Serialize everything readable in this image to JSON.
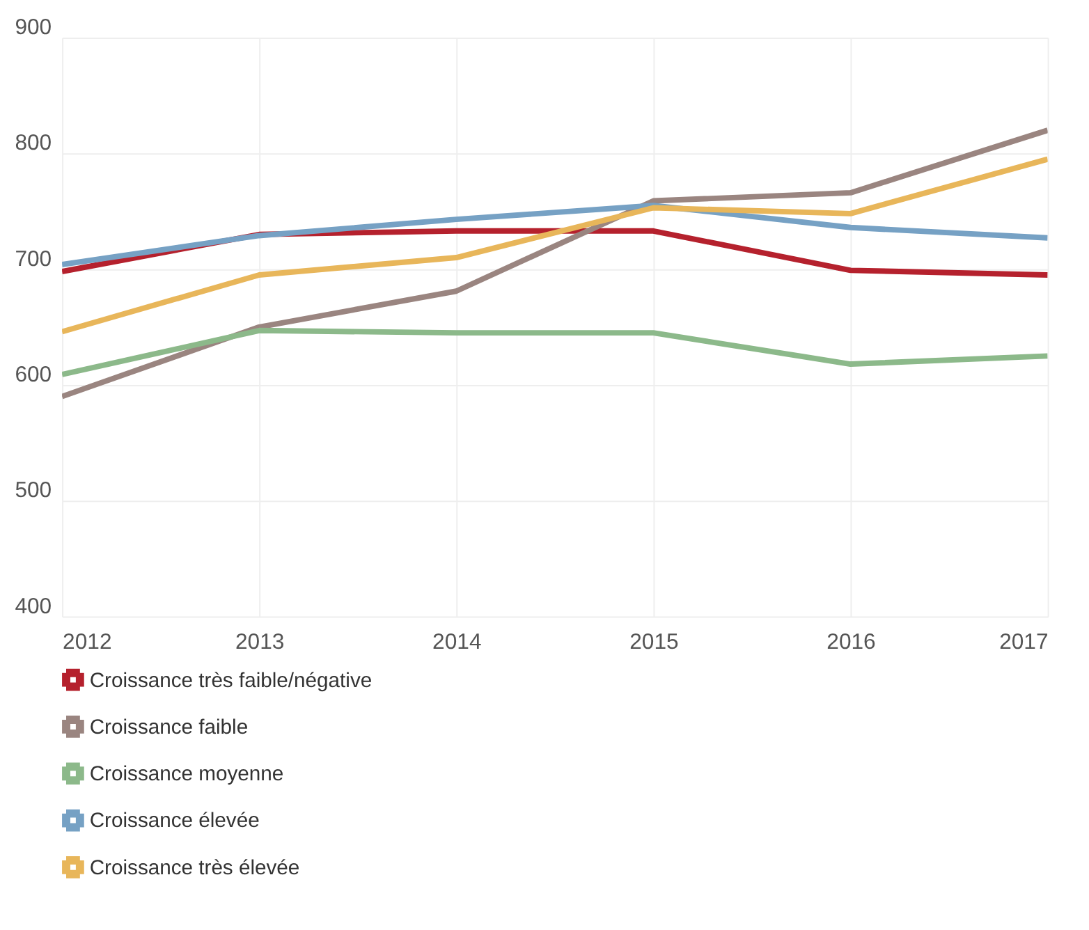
{
  "chart_data": {
    "type": "line",
    "x": [
      2012,
      2013,
      2014,
      2015,
      2016,
      2017
    ],
    "xlim": [
      2012,
      2017
    ],
    "xticks": [
      2012,
      2013,
      2014,
      2015,
      2016,
      2017
    ],
    "ylim": [
      400,
      900
    ],
    "yticks": [
      400,
      500,
      600,
      700,
      800,
      900
    ],
    "series": [
      {
        "name": "Croissance très faible/négative",
        "color": "#b5212d",
        "values": [
          698,
          730,
          733,
          733,
          699,
          695
        ]
      },
      {
        "name": "Croissance faible",
        "color": "#9a8580",
        "values": [
          590,
          650,
          681,
          759,
          766,
          820
        ]
      },
      {
        "name": "Croissance moyenne",
        "color": "#8cb98a",
        "values": [
          609,
          647,
          645,
          645,
          618,
          625
        ]
      },
      {
        "name": "Croissance élevée",
        "color": "#76a1c4",
        "values": [
          704,
          729,
          743,
          755,
          736,
          727
        ]
      },
      {
        "name": "Croissance très élevée",
        "color": "#e8b65a",
        "values": [
          646,
          695,
          710,
          753,
          748,
          795
        ]
      }
    ],
    "grid": true,
    "legend": "bottom",
    "marker": "none",
    "line_style": "solid"
  }
}
